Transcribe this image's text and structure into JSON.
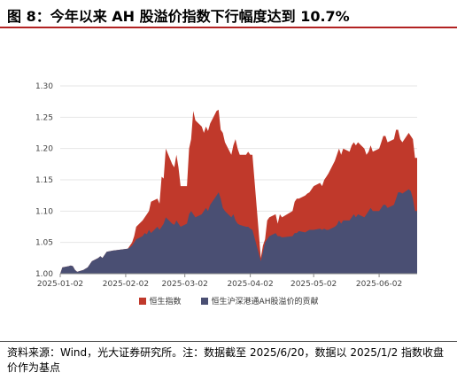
{
  "title": "图 8：今年以来 AH 股溢价指数下行幅度达到 10.7%",
  "source": "资料来源：Wind，光大证券研究所。注：数据截至 2025/6/20，数据以 2025/1/2 指数收盘价作为基点",
  "chart_data": {
    "type": "area",
    "x_ticks": [
      "2025-01-02",
      "2025-02-02",
      "2025-03-02",
      "2025-04-02",
      "2025-05-02",
      "2025-06-02"
    ],
    "x_range": [
      "2025-01-02",
      "2025-06-20"
    ],
    "ylim": [
      1.0,
      1.3
    ],
    "y_ticks": [
      "1.00",
      "1.05",
      "1.10",
      "1.15",
      "1.20",
      "1.25",
      "1.30"
    ],
    "legend_position": "bottom",
    "series": [
      {
        "name": "恒生指数",
        "color": "#c0392b",
        "points": [
          [
            "2025-01-02",
            1.0
          ],
          [
            "2025-01-03",
            1.01
          ],
          [
            "2025-01-06",
            1.012
          ],
          [
            "2025-01-07",
            1.013
          ],
          [
            "2025-01-08",
            1.012
          ],
          [
            "2025-01-09",
            1.006
          ],
          [
            "2025-01-10",
            1.003
          ],
          [
            "2025-01-13",
            1.006
          ],
          [
            "2025-01-14",
            1.008
          ],
          [
            "2025-01-15",
            1.01
          ],
          [
            "2025-01-16",
            1.015
          ],
          [
            "2025-01-17",
            1.02
          ],
          [
            "2025-01-20",
            1.025
          ],
          [
            "2025-01-21",
            1.028
          ],
          [
            "2025-01-22",
            1.025
          ],
          [
            "2025-01-23",
            1.03
          ],
          [
            "2025-01-24",
            1.035
          ],
          [
            "2025-01-27",
            1.037
          ],
          [
            "2025-02-03",
            1.04
          ],
          [
            "2025-02-04",
            1.045
          ],
          [
            "2025-02-05",
            1.05
          ],
          [
            "2025-02-06",
            1.06
          ],
          [
            "2025-02-07",
            1.075
          ],
          [
            "2025-02-10",
            1.085
          ],
          [
            "2025-02-11",
            1.09
          ],
          [
            "2025-02-12",
            1.095
          ],
          [
            "2025-02-13",
            1.1
          ],
          [
            "2025-02-14",
            1.115
          ],
          [
            "2025-02-17",
            1.12
          ],
          [
            "2025-02-18",
            1.112
          ],
          [
            "2025-02-19",
            1.155
          ],
          [
            "2025-02-20",
            1.152
          ],
          [
            "2025-02-21",
            1.2
          ],
          [
            "2025-02-24",
            1.175
          ],
          [
            "2025-02-25",
            1.17
          ],
          [
            "2025-02-26",
            1.19
          ],
          [
            "2025-02-27",
            1.17
          ],
          [
            "2025-02-28",
            1.14
          ],
          [
            "2025-03-03",
            1.14
          ],
          [
            "2025-03-04",
            1.2
          ],
          [
            "2025-03-05",
            1.215
          ],
          [
            "2025-03-06",
            1.26
          ],
          [
            "2025-03-07",
            1.245
          ],
          [
            "2025-03-10",
            1.235
          ],
          [
            "2025-03-11",
            1.225
          ],
          [
            "2025-03-12",
            1.235
          ],
          [
            "2025-03-13",
            1.228
          ],
          [
            "2025-03-14",
            1.24
          ],
          [
            "2025-03-17",
            1.26
          ],
          [
            "2025-03-18",
            1.262
          ],
          [
            "2025-03-19",
            1.23
          ],
          [
            "2025-03-20",
            1.225
          ],
          [
            "2025-03-21",
            1.21
          ],
          [
            "2025-03-24",
            1.19
          ],
          [
            "2025-03-25",
            1.205
          ],
          [
            "2025-03-26",
            1.215
          ],
          [
            "2025-03-27",
            1.2
          ],
          [
            "2025-03-28",
            1.19
          ],
          [
            "2025-03-31",
            1.19
          ],
          [
            "2025-04-01",
            1.195
          ],
          [
            "2025-04-02",
            1.19
          ],
          [
            "2025-04-03",
            1.19
          ],
          [
            "2025-04-07",
            1.025
          ],
          [
            "2025-04-08",
            1.045
          ],
          [
            "2025-04-09",
            1.055
          ],
          [
            "2025-04-10",
            1.085
          ],
          [
            "2025-04-11",
            1.09
          ],
          [
            "2025-04-14",
            1.095
          ],
          [
            "2025-04-15",
            1.08
          ],
          [
            "2025-04-16",
            1.095
          ],
          [
            "2025-04-17",
            1.09
          ],
          [
            "2025-04-22",
            1.1
          ],
          [
            "2025-04-23",
            1.115
          ],
          [
            "2025-04-24",
            1.12
          ],
          [
            "2025-04-25",
            1.12
          ],
          [
            "2025-04-28",
            1.125
          ],
          [
            "2025-04-29",
            1.128
          ],
          [
            "2025-04-30",
            1.13
          ],
          [
            "2025-05-02",
            1.14
          ],
          [
            "2025-05-05",
            1.145
          ],
          [
            "2025-05-06",
            1.14
          ],
          [
            "2025-05-07",
            1.15
          ],
          [
            "2025-05-08",
            1.155
          ],
          [
            "2025-05-09",
            1.16
          ],
          [
            "2025-05-12",
            1.18
          ],
          [
            "2025-05-13",
            1.19
          ],
          [
            "2025-05-14",
            1.2
          ],
          [
            "2025-05-15",
            1.19
          ],
          [
            "2025-05-16",
            1.2
          ],
          [
            "2025-05-19",
            1.195
          ],
          [
            "2025-05-20",
            1.205
          ],
          [
            "2025-05-21",
            1.21
          ],
          [
            "2025-05-22",
            1.205
          ],
          [
            "2025-05-23",
            1.21
          ],
          [
            "2025-05-26",
            1.2
          ],
          [
            "2025-05-27",
            1.19
          ],
          [
            "2025-05-28",
            1.195
          ],
          [
            "2025-05-29",
            1.205
          ],
          [
            "2025-05-30",
            1.195
          ],
          [
            "2025-06-02",
            1.2
          ],
          [
            "2025-06-03",
            1.21
          ],
          [
            "2025-06-04",
            1.22
          ],
          [
            "2025-06-05",
            1.22
          ],
          [
            "2025-06-06",
            1.21
          ],
          [
            "2025-06-09",
            1.215
          ],
          [
            "2025-06-10",
            1.23
          ],
          [
            "2025-06-11",
            1.23
          ],
          [
            "2025-06-12",
            1.215
          ],
          [
            "2025-06-13",
            1.21
          ],
          [
            "2025-06-16",
            1.225
          ],
          [
            "2025-06-17",
            1.22
          ],
          [
            "2025-06-18",
            1.215
          ],
          [
            "2025-06-19",
            1.185
          ],
          [
            "2025-06-20",
            1.185
          ]
        ]
      },
      {
        "name": "恒生沪深港通AH股溢价的贡献",
        "color": "#4a4f73",
        "points": [
          [
            "2025-01-02",
            1.0
          ],
          [
            "2025-01-03",
            1.01
          ],
          [
            "2025-01-06",
            1.012
          ],
          [
            "2025-01-07",
            1.013
          ],
          [
            "2025-01-08",
            1.012
          ],
          [
            "2025-01-09",
            1.006
          ],
          [
            "2025-01-10",
            1.003
          ],
          [
            "2025-01-13",
            1.006
          ],
          [
            "2025-01-14",
            1.008
          ],
          [
            "2025-01-15",
            1.01
          ],
          [
            "2025-01-16",
            1.015
          ],
          [
            "2025-01-17",
            1.02
          ],
          [
            "2025-01-20",
            1.025
          ],
          [
            "2025-01-21",
            1.028
          ],
          [
            "2025-01-22",
            1.025
          ],
          [
            "2025-01-23",
            1.03
          ],
          [
            "2025-01-24",
            1.035
          ],
          [
            "2025-01-27",
            1.037
          ],
          [
            "2025-02-03",
            1.04
          ],
          [
            "2025-02-04",
            1.042
          ],
          [
            "2025-02-05",
            1.045
          ],
          [
            "2025-02-06",
            1.05
          ],
          [
            "2025-02-07",
            1.055
          ],
          [
            "2025-02-10",
            1.06
          ],
          [
            "2025-02-11",
            1.065
          ],
          [
            "2025-02-12",
            1.063
          ],
          [
            "2025-02-13",
            1.07
          ],
          [
            "2025-02-14",
            1.065
          ],
          [
            "2025-02-17",
            1.075
          ],
          [
            "2025-02-18",
            1.07
          ],
          [
            "2025-02-19",
            1.075
          ],
          [
            "2025-02-20",
            1.08
          ],
          [
            "2025-02-21",
            1.09
          ],
          [
            "2025-02-24",
            1.08
          ],
          [
            "2025-02-25",
            1.078
          ],
          [
            "2025-02-26",
            1.085
          ],
          [
            "2025-02-27",
            1.08
          ],
          [
            "2025-02-28",
            1.075
          ],
          [
            "2025-03-03",
            1.08
          ],
          [
            "2025-03-04",
            1.095
          ],
          [
            "2025-03-05",
            1.1
          ],
          [
            "2025-03-06",
            1.095
          ],
          [
            "2025-03-07",
            1.09
          ],
          [
            "2025-03-10",
            1.095
          ],
          [
            "2025-03-11",
            1.1
          ],
          [
            "2025-03-12",
            1.105
          ],
          [
            "2025-03-13",
            1.1
          ],
          [
            "2025-03-14",
            1.11
          ],
          [
            "2025-03-17",
            1.125
          ],
          [
            "2025-03-18",
            1.13
          ],
          [
            "2025-03-19",
            1.12
          ],
          [
            "2025-03-20",
            1.105
          ],
          [
            "2025-03-21",
            1.1
          ],
          [
            "2025-03-24",
            1.09
          ],
          [
            "2025-03-25",
            1.095
          ],
          [
            "2025-03-26",
            1.085
          ],
          [
            "2025-03-27",
            1.08
          ],
          [
            "2025-03-28",
            1.078
          ],
          [
            "2025-03-31",
            1.075
          ],
          [
            "2025-04-01",
            1.075
          ],
          [
            "2025-04-02",
            1.072
          ],
          [
            "2025-04-03",
            1.07
          ],
          [
            "2025-04-07",
            1.02
          ],
          [
            "2025-04-08",
            1.035
          ],
          [
            "2025-04-09",
            1.05
          ],
          [
            "2025-04-10",
            1.055
          ],
          [
            "2025-04-11",
            1.06
          ],
          [
            "2025-04-14",
            1.065
          ],
          [
            "2025-04-15",
            1.06
          ],
          [
            "2025-04-16",
            1.06
          ],
          [
            "2025-04-17",
            1.058
          ],
          [
            "2025-04-22",
            1.06
          ],
          [
            "2025-04-23",
            1.065
          ],
          [
            "2025-04-24",
            1.065
          ],
          [
            "2025-04-25",
            1.068
          ],
          [
            "2025-04-28",
            1.066
          ],
          [
            "2025-04-29",
            1.068
          ],
          [
            "2025-04-30",
            1.07
          ],
          [
            "2025-05-02",
            1.07
          ],
          [
            "2025-05-05",
            1.072
          ],
          [
            "2025-05-06",
            1.07
          ],
          [
            "2025-05-07",
            1.072
          ],
          [
            "2025-05-08",
            1.07
          ],
          [
            "2025-05-09",
            1.07
          ],
          [
            "2025-05-12",
            1.075
          ],
          [
            "2025-05-13",
            1.078
          ],
          [
            "2025-05-14",
            1.085
          ],
          [
            "2025-05-15",
            1.08
          ],
          [
            "2025-05-16",
            1.085
          ],
          [
            "2025-05-19",
            1.085
          ],
          [
            "2025-05-20",
            1.09
          ],
          [
            "2025-05-21",
            1.095
          ],
          [
            "2025-05-22",
            1.09
          ],
          [
            "2025-05-23",
            1.095
          ],
          [
            "2025-05-26",
            1.09
          ],
          [
            "2025-05-27",
            1.095
          ],
          [
            "2025-05-28",
            1.1
          ],
          [
            "2025-05-29",
            1.105
          ],
          [
            "2025-05-30",
            1.1
          ],
          [
            "2025-06-02",
            1.1
          ],
          [
            "2025-06-03",
            1.105
          ],
          [
            "2025-06-04",
            1.11
          ],
          [
            "2025-06-05",
            1.11
          ],
          [
            "2025-06-06",
            1.105
          ],
          [
            "2025-06-09",
            1.11
          ],
          [
            "2025-06-10",
            1.12
          ],
          [
            "2025-06-11",
            1.13
          ],
          [
            "2025-06-12",
            1.13
          ],
          [
            "2025-06-13",
            1.128
          ],
          [
            "2025-06-16",
            1.135
          ],
          [
            "2025-06-17",
            1.132
          ],
          [
            "2025-06-18",
            1.12
          ],
          [
            "2025-06-19",
            1.1
          ],
          [
            "2025-06-20",
            1.1
          ]
        ]
      }
    ]
  }
}
